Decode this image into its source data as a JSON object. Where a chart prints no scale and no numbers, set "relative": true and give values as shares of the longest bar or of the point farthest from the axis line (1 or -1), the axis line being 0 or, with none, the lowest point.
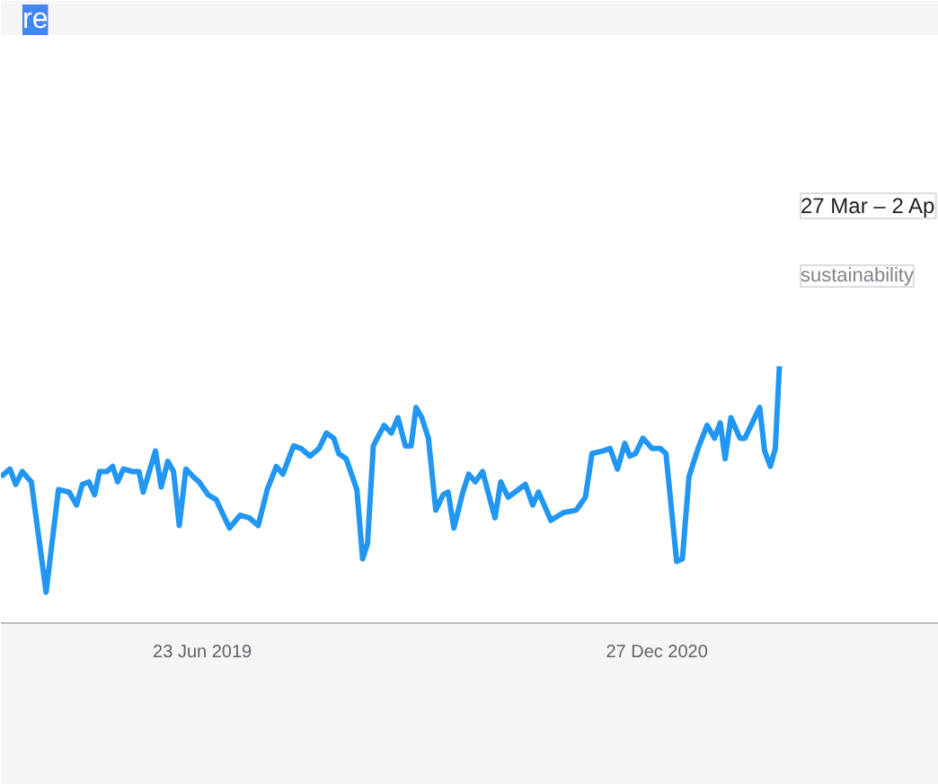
{
  "chart_data": {
    "type": "line",
    "title": "re",
    "relative": true,
    "x": [
      "2018-10-21",
      "2018-11-01",
      "2018-11-08",
      "2018-11-16",
      "2018-11-27",
      "2018-12-15",
      "2018-12-30",
      "2019-01-12",
      "2019-01-21",
      "2019-01-28",
      "2019-02-05",
      "2019-02-12",
      "2019-02-18",
      "2019-02-27",
      "2019-03-06",
      "2019-03-12",
      "2019-03-19",
      "2019-03-30",
      "2019-04-07",
      "2019-04-12",
      "2019-04-27",
      "2019-05-04",
      "2019-05-12",
      "2019-05-19",
      "2019-05-26",
      "2019-06-03",
      "2019-06-12",
      "2019-06-19",
      "2019-06-30",
      "2019-07-10",
      "2019-07-26",
      "2019-08-08",
      "2019-08-19",
      "2019-08-30",
      "2019-09-10",
      "2019-09-21",
      "2019-09-29",
      "2019-10-12",
      "2019-10-21",
      "2019-11-01",
      "2019-11-12",
      "2019-11-21",
      "2019-11-30",
      "2019-12-06",
      "2019-12-15",
      "2019-12-28",
      "2020-01-04",
      "2020-01-10",
      "2020-01-17",
      "2020-01-30",
      "2020-02-08",
      "2020-02-16",
      "2020-02-25",
      "2020-03-03",
      "2020-03-09",
      "2020-03-16",
      "2020-03-24",
      "2020-04-02",
      "2020-04-11",
      "2020-04-17",
      "2020-04-24",
      "2020-05-05",
      "2020-05-12",
      "2020-05-20",
      "2020-05-29",
      "2020-06-13",
      "2020-06-20",
      "2020-06-29",
      "2020-07-20",
      "2020-07-29",
      "2020-08-05",
      "2020-08-20",
      "2020-09-04",
      "2020-09-20",
      "2020-10-01",
      "2020-10-09",
      "2020-10-22",
      "2020-10-31",
      "2020-11-09",
      "2020-11-18",
      "2020-11-24",
      "2020-12-01",
      "2020-12-10",
      "2020-12-21",
      "2020-12-31",
      "2021-01-07",
      "2021-01-20",
      "2021-01-27",
      "2021-02-04",
      "2021-02-15",
      "2021-02-26",
      "2021-03-07",
      "2021-03-14",
      "2021-03-20",
      "2021-03-27",
      "2021-04-07",
      "2021-04-13",
      "2021-05-01",
      "2021-05-07",
      "2021-05-14",
      "2021-05-20",
      "2021-05-25"
    ],
    "series": [
      {
        "color": "#2196f3",
        "values": [
          0.57,
          0.6,
          0.54,
          0.59,
          0.55,
          0.12,
          0.52,
          0.51,
          0.46,
          0.54,
          0.55,
          0.5,
          0.59,
          0.59,
          0.61,
          0.55,
          0.6,
          0.59,
          0.59,
          0.51,
          0.67,
          0.53,
          0.63,
          0.59,
          0.38,
          0.6,
          0.57,
          0.55,
          0.5,
          0.48,
          0.37,
          0.42,
          0.41,
          0.38,
          0.52,
          0.61,
          0.58,
          0.69,
          0.68,
          0.65,
          0.68,
          0.74,
          0.72,
          0.66,
          0.64,
          0.52,
          0.25,
          0.31,
          0.69,
          0.77,
          0.74,
          0.8,
          0.69,
          0.69,
          0.84,
          0.8,
          0.72,
          0.44,
          0.5,
          0.51,
          0.37,
          0.51,
          0.58,
          0.55,
          0.59,
          0.41,
          0.55,
          0.49,
          0.54,
          0.46,
          0.51,
          0.4,
          0.43,
          0.44,
          0.49,
          0.66,
          0.67,
          0.68,
          0.6,
          0.7,
          0.65,
          0.66,
          0.72,
          0.68,
          0.68,
          0.66,
          0.24,
          0.25,
          0.57,
          0.68,
          0.77,
          0.72,
          0.78,
          0.64,
          0.8,
          0.72,
          0.72,
          0.84,
          0.67,
          0.61,
          0.68,
          1.0
        ]
      }
    ],
    "xlim": [
      "2018-10-21",
      "2021-12-05"
    ],
    "xticks": [
      {
        "value": "2019-06-23",
        "label": "23 Jun 2019"
      },
      {
        "value": "2020-12-27",
        "label": "27 Dec 2020"
      }
    ],
    "annotations": [
      "27 Mar – 2 Ap",
      "sustainability"
    ],
    "grid": false
  }
}
